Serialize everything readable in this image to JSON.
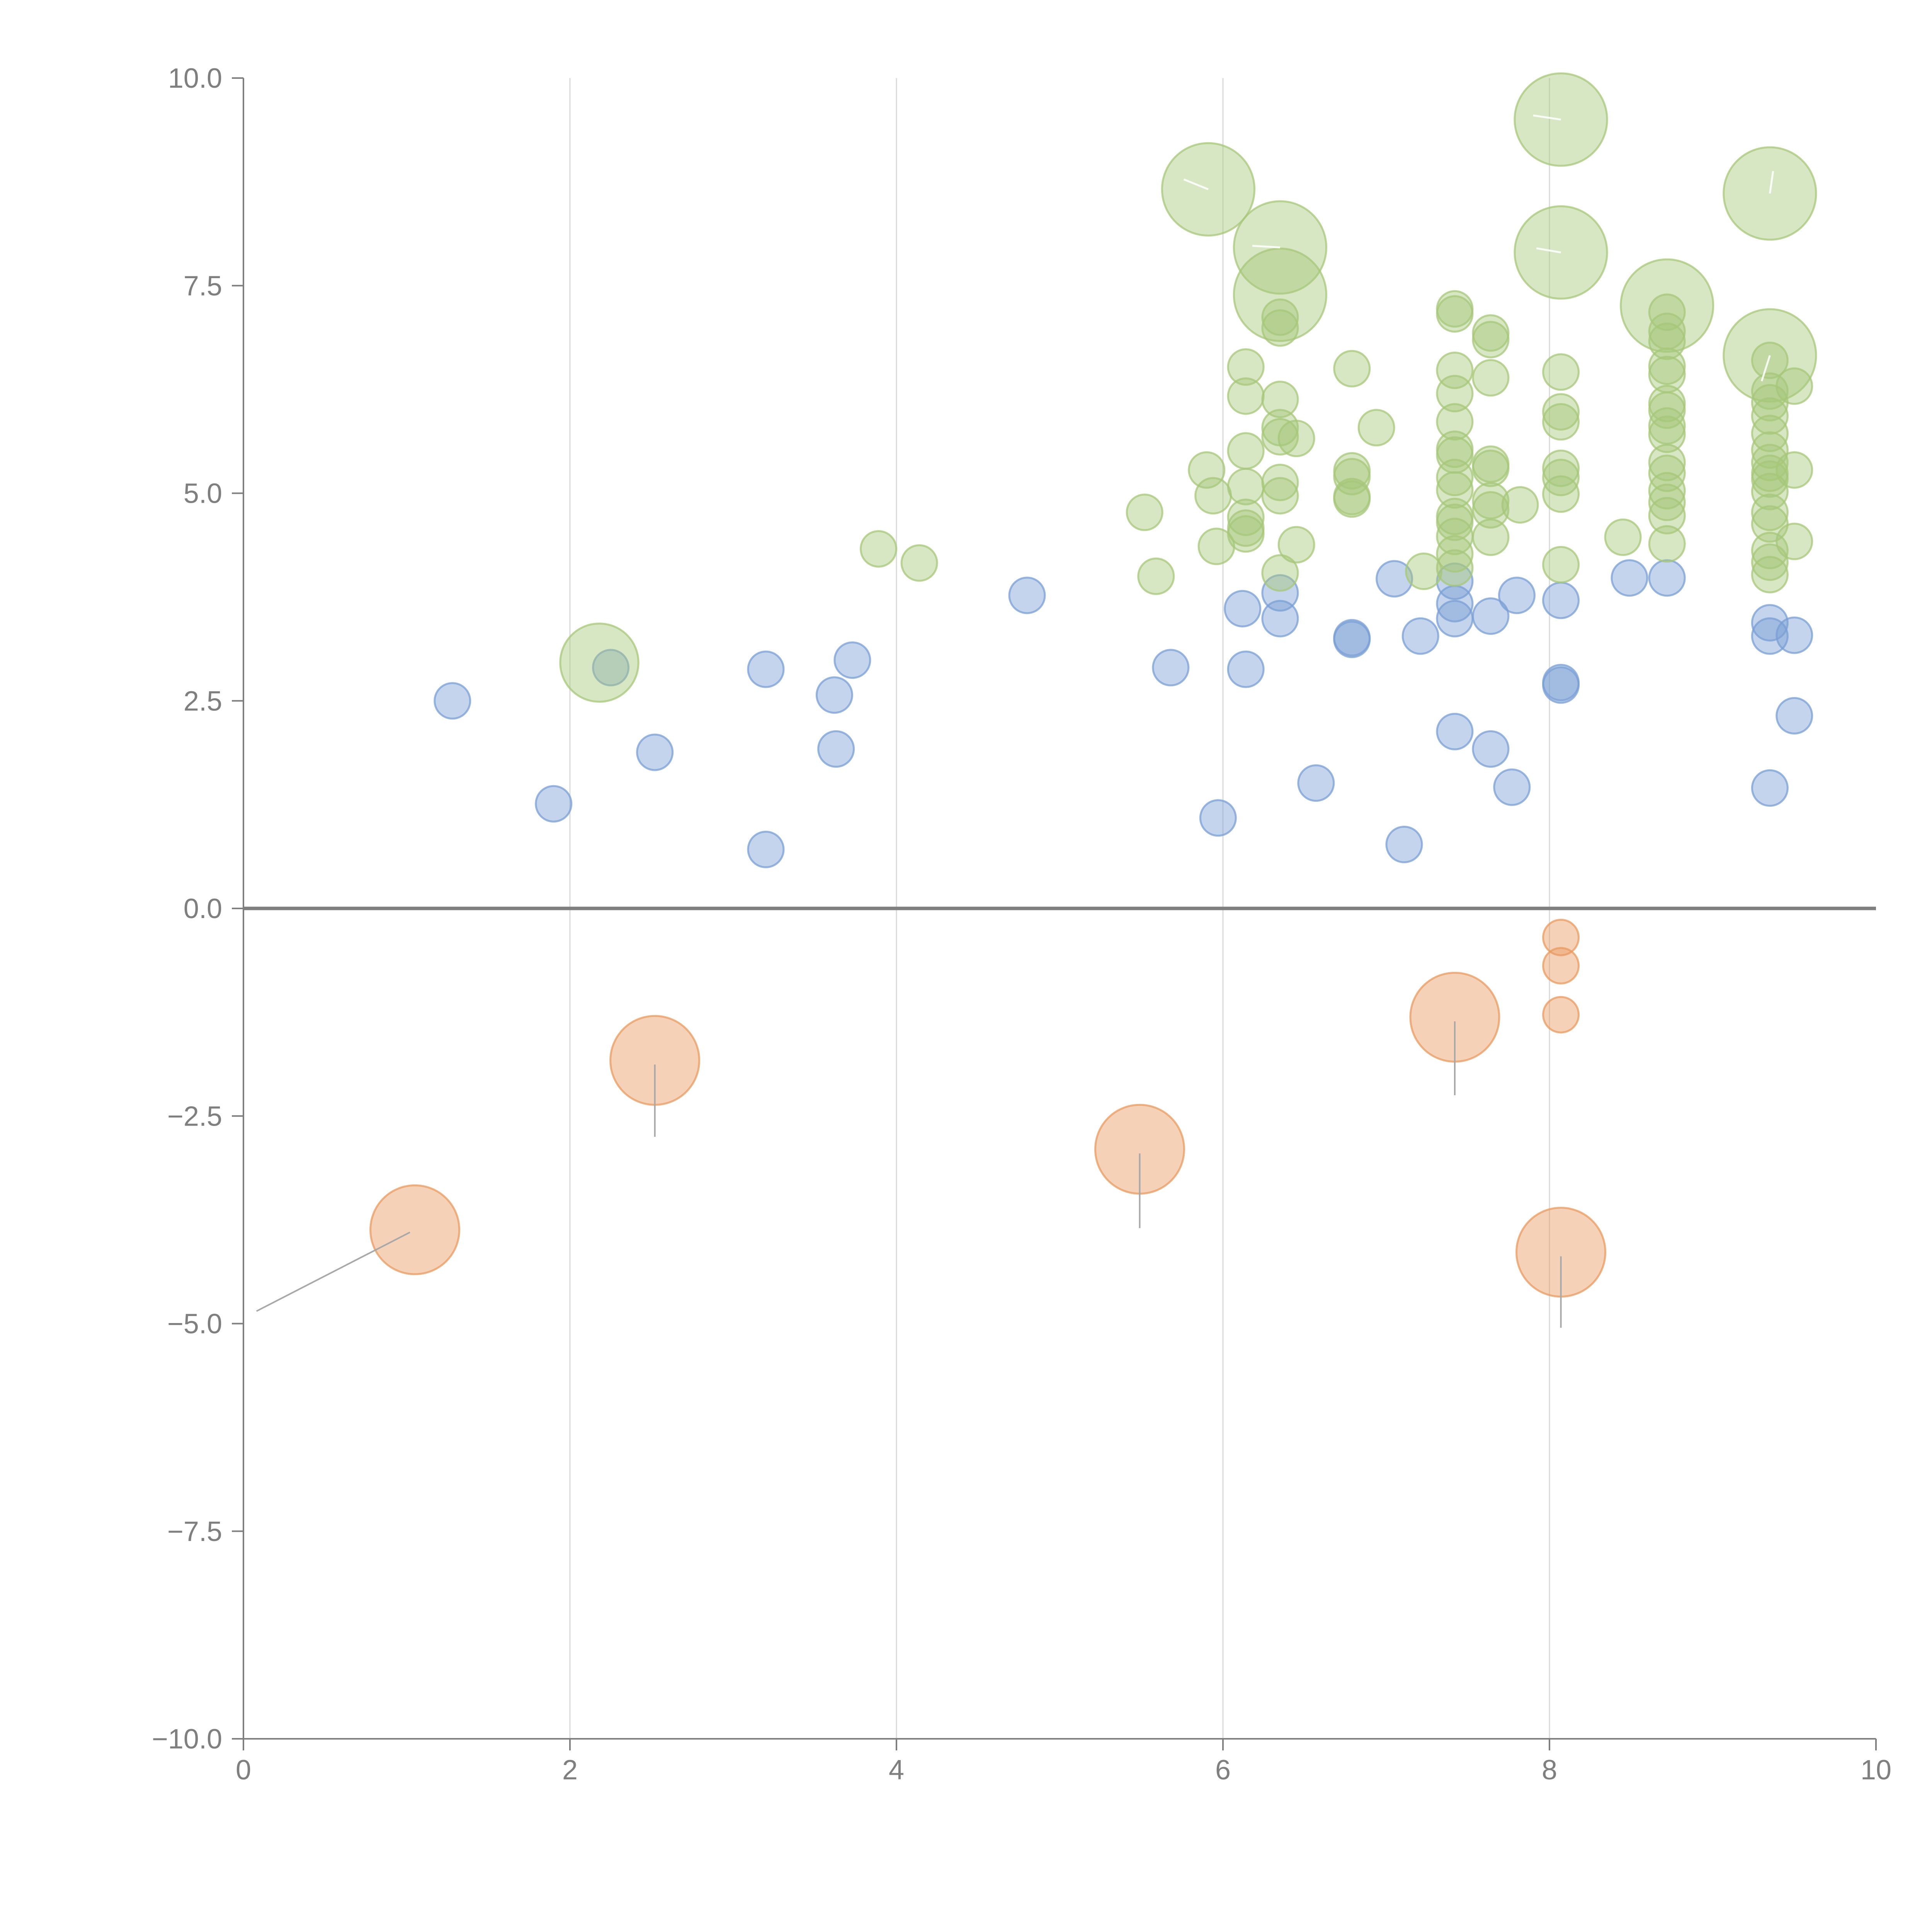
{
  "chart_data": {
    "type": "scatter",
    "title": "",
    "xlabel": "",
    "ylabel": "",
    "xlim": [
      0,
      10
    ],
    "ylim": [
      -10,
      10
    ],
    "x_ticks": [
      "0",
      "2",
      "4",
      "6",
      "8",
      "10"
    ],
    "y_ticks": [
      "−10.0",
      "−7.5",
      "−5.0",
      "−2.5",
      "0.0",
      "2.5",
      "5.0",
      "7.5",
      "10.0"
    ],
    "vertical_grid_at": [
      2,
      4,
      6,
      8
    ],
    "zero_line": true,
    "colors": {
      "blue": "#7a9fd4",
      "green": "#a7c77a",
      "orange": "#e89a5f",
      "axis": "#7f7f7f",
      "grid": "#d9d9d9"
    },
    "series": [
      {
        "color": "#7a9fd4",
        "points": [
          [
            1.28,
            2.5,
            1
          ],
          [
            1.9,
            1.26,
            1
          ],
          [
            2.25,
            2.9,
            1
          ],
          [
            2.52,
            1.88,
            1
          ],
          [
            3.2,
            2.88,
            1
          ],
          [
            3.2,
            0.71,
            1
          ],
          [
            3.62,
            2.57,
            1
          ],
          [
            3.63,
            1.92,
            1
          ],
          [
            3.73,
            2.99,
            1
          ],
          [
            4.8,
            3.77,
            1
          ],
          [
            5.68,
            2.9,
            1
          ],
          [
            5.97,
            1.09,
            1
          ],
          [
            6.12,
            3.61,
            1
          ],
          [
            6.14,
            2.88,
            1
          ],
          [
            6.35,
            3.8,
            1
          ],
          [
            6.35,
            3.49,
            1
          ],
          [
            6.57,
            1.51,
            1
          ],
          [
            6.79,
            3.26,
            1
          ],
          [
            6.79,
            3.24,
            1
          ],
          [
            7.05,
            3.97,
            1
          ],
          [
            7.11,
            0.77,
            1
          ],
          [
            7.21,
            3.28,
            1
          ],
          [
            7.42,
            2.13,
            1
          ],
          [
            7.42,
            3.49,
            1
          ],
          [
            7.42,
            3.67,
            1
          ],
          [
            7.42,
            3.94,
            1
          ],
          [
            7.64,
            3.52,
            1
          ],
          [
            7.64,
            1.92,
            1
          ],
          [
            7.77,
            1.46,
            1
          ],
          [
            7.8,
            3.77,
            1
          ],
          [
            8.07,
            3.71,
            1
          ],
          [
            8.07,
            2.72,
            1
          ],
          [
            8.07,
            2.69,
            1
          ],
          [
            8.49,
            3.98,
            1
          ],
          [
            8.72,
            3.98,
            1
          ],
          [
            9.35,
            3.44,
            1
          ],
          [
            9.35,
            3.28,
            1
          ],
          [
            9.35,
            1.45,
            1
          ],
          [
            9.5,
            3.29,
            1
          ],
          [
            9.5,
            2.32,
            1
          ]
        ]
      },
      {
        "color": "#a7c77a",
        "points": [
          [
            2.18,
            2.96,
            2.2
          ],
          [
            3.89,
            4.33,
            1
          ],
          [
            4.14,
            4.16,
            1
          ],
          [
            5.52,
            4.77,
            1
          ],
          [
            5.59,
            4.0,
            1
          ],
          [
            5.91,
            8.66,
            2.6
          ],
          [
            5.9,
            5.28,
            1
          ],
          [
            5.94,
            4.97,
            1
          ],
          [
            5.96,
            4.36,
            1
          ],
          [
            6.14,
            6.52,
            1
          ],
          [
            6.14,
            6.17,
            1
          ],
          [
            6.14,
            5.51,
            1
          ],
          [
            6.14,
            5.08,
            1
          ],
          [
            6.14,
            4.71,
            1
          ],
          [
            6.14,
            4.51,
            1
          ],
          [
            6.14,
            4.58,
            1
          ],
          [
            6.35,
            7.96,
            2.6
          ],
          [
            6.35,
            7.39,
            2.6
          ],
          [
            6.35,
            7.12,
            1
          ],
          [
            6.35,
            6.99,
            1
          ],
          [
            6.35,
            6.13,
            1
          ],
          [
            6.35,
            5.79,
            1
          ],
          [
            6.35,
            5.68,
            1
          ],
          [
            6.35,
            5.13,
            1
          ],
          [
            6.35,
            4.97,
            1
          ],
          [
            6.35,
            4.04,
            1
          ],
          [
            6.45,
            5.66,
            1
          ],
          [
            6.45,
            4.38,
            1
          ],
          [
            6.79,
            6.5,
            1
          ],
          [
            6.79,
            5.27,
            1
          ],
          [
            6.79,
            5.2,
            1
          ],
          [
            6.79,
            4.96,
            1
          ],
          [
            6.79,
            4.93,
            1
          ],
          [
            6.94,
            5.79,
            1
          ],
          [
            7.23,
            4.06,
            1
          ],
          [
            7.42,
            7.22,
            1
          ],
          [
            7.42,
            7.16,
            1
          ],
          [
            7.42,
            6.48,
            1
          ],
          [
            7.42,
            6.2,
            1
          ],
          [
            7.42,
            5.86,
            1
          ],
          [
            7.42,
            5.53,
            1
          ],
          [
            7.42,
            5.46,
            1
          ],
          [
            7.42,
            5.19,
            1
          ],
          [
            7.42,
            5.04,
            1
          ],
          [
            7.42,
            4.72,
            1
          ],
          [
            7.42,
            4.65,
            1
          ],
          [
            7.42,
            4.48,
            1
          ],
          [
            7.42,
            4.27,
            1
          ],
          [
            7.42,
            4.1,
            1
          ],
          [
            7.64,
            6.93,
            1
          ],
          [
            7.64,
            6.85,
            1
          ],
          [
            7.64,
            6.39,
            1
          ],
          [
            7.64,
            5.35,
            1
          ],
          [
            7.64,
            5.3,
            1
          ],
          [
            7.64,
            4.91,
            1
          ],
          [
            7.64,
            4.8,
            1
          ],
          [
            7.64,
            4.47,
            1
          ],
          [
            7.82,
            4.86,
            1
          ],
          [
            8.07,
            9.5,
            2.6
          ],
          [
            8.07,
            7.9,
            2.6
          ],
          [
            8.07,
            6.46,
            1
          ],
          [
            8.07,
            5.98,
            1
          ],
          [
            8.07,
            5.86,
            1
          ],
          [
            8.07,
            5.3,
            1
          ],
          [
            8.07,
            5.19,
            1
          ],
          [
            8.07,
            4.99,
            1
          ],
          [
            8.07,
            4.14,
            1
          ],
          [
            8.45,
            4.47,
            1
          ],
          [
            8.72,
            7.26,
            2.6
          ],
          [
            8.72,
            7.18,
            1
          ],
          [
            8.72,
            6.95,
            1
          ],
          [
            8.72,
            6.83,
            1
          ],
          [
            8.72,
            6.53,
            1
          ],
          [
            8.72,
            6.43,
            1
          ],
          [
            8.72,
            6.08,
            1
          ],
          [
            8.72,
            6.0,
            1
          ],
          [
            8.72,
            5.81,
            1
          ],
          [
            8.72,
            5.71,
            1
          ],
          [
            8.72,
            5.37,
            1
          ],
          [
            8.72,
            5.24,
            1
          ],
          [
            8.72,
            5.03,
            1
          ],
          [
            8.72,
            4.89,
            1
          ],
          [
            8.72,
            4.73,
            1
          ],
          [
            8.72,
            4.39,
            1
          ],
          [
            9.35,
            8.61,
            2.6
          ],
          [
            9.35,
            6.66,
            2.6
          ],
          [
            9.35,
            6.6,
            1
          ],
          [
            9.35,
            6.23,
            1
          ],
          [
            9.35,
            6.09,
            1
          ],
          [
            9.35,
            5.93,
            1
          ],
          [
            9.35,
            5.72,
            1
          ],
          [
            9.35,
            5.52,
            1
          ],
          [
            9.35,
            5.37,
            1
          ],
          [
            9.35,
            5.24,
            1
          ],
          [
            9.35,
            5.17,
            1
          ],
          [
            9.35,
            5.02,
            1
          ],
          [
            9.35,
            4.77,
            1
          ],
          [
            9.35,
            4.63,
            1
          ],
          [
            9.35,
            4.31,
            1
          ],
          [
            9.35,
            4.17,
            1
          ],
          [
            9.35,
            4.02,
            1
          ],
          [
            9.5,
            6.29,
            1
          ],
          [
            9.5,
            5.28,
            1
          ],
          [
            9.5,
            4.42,
            1
          ]
        ]
      },
      {
        "color": "#e89a5f",
        "points": [
          [
            1.05,
            -3.87,
            2.5
          ],
          [
            2.52,
            -1.83,
            2.5
          ],
          [
            5.49,
            -2.9,
            2.5
          ],
          [
            7.42,
            -1.31,
            2.5
          ],
          [
            8.07,
            -4.14,
            2.5
          ],
          [
            8.07,
            -0.35,
            1
          ],
          [
            8.07,
            -0.69,
            1
          ],
          [
            8.07,
            -1.28,
            1
          ]
        ]
      }
    ]
  }
}
